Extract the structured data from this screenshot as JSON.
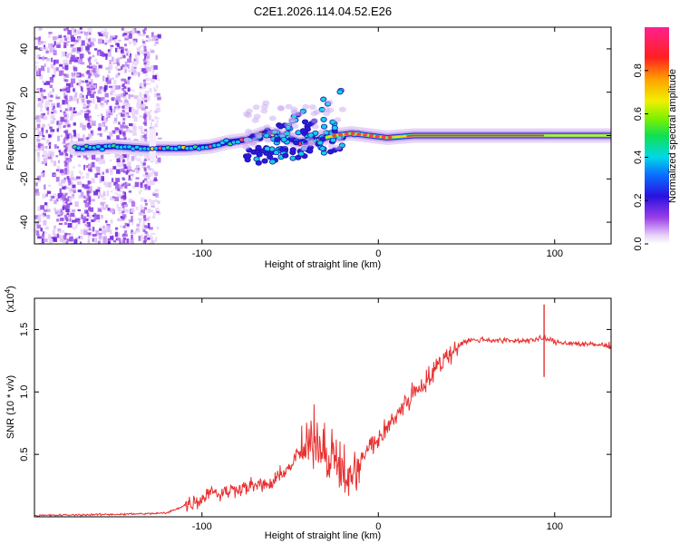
{
  "title": "C2E1.2026.114.04.52.E26",
  "chart_data": [
    {
      "type": "heatmap",
      "xlabel": "Height of straight line (km)",
      "ylabel": "Frequency (Hz)",
      "xlim": [
        -195,
        132
      ],
      "ylim": [
        -50,
        50
      ],
      "x_ticks": [
        -100,
        0,
        100
      ],
      "y_ticks": [
        -40,
        -20,
        0,
        20,
        40
      ],
      "colorbar": {
        "label": "Normalized spectral amplitude",
        "range": [
          0,
          1
        ],
        "ticks": [
          "0.0",
          "0.2",
          "0.4",
          "0.6",
          "0.8"
        ],
        "tick_values": [
          0,
          0.2,
          0.4,
          0.6,
          0.8
        ]
      },
      "signal_track": {
        "x": [
          -170,
          -150,
          -130,
          -110,
          -95,
          -85,
          -75,
          -65,
          -55,
          -45,
          -35,
          -25,
          -15,
          -5,
          5,
          20,
          50,
          80,
          110,
          132
        ],
        "frequency": [
          -6,
          -5,
          -6,
          -6,
          -5,
          -3,
          -2,
          1,
          0,
          -3,
          -2,
          0,
          1,
          0,
          -1,
          0,
          0,
          0,
          0,
          0
        ]
      },
      "noise_region_x": [
        -195,
        -125
      ]
    },
    {
      "type": "line",
      "xlabel": "Height of straight line (km)",
      "ylabel": "SNR (10 * v/v)",
      "y_multiplier": "(x10",
      "y_exponent": "4",
      "y_multiplier_close": ")",
      "xlim": [
        -195,
        132
      ],
      "ylim": [
        0,
        17500
      ],
      "x_ticks": [
        -100,
        0,
        100
      ],
      "y_ticks": [
        5000,
        10000,
        15000
      ],
      "y_tick_labels": [
        "0.5",
        "1.0",
        "1.5"
      ],
      "color": "#e83030",
      "series": [
        {
          "name": "SNR",
          "x": [
            -195,
            -170,
            -150,
            -130,
            -120,
            -110,
            -100,
            -95,
            -90,
            -80,
            -70,
            -60,
            -55,
            -50,
            -45,
            -40,
            -35,
            -30,
            -25,
            -20,
            -15,
            -10,
            -5,
            0,
            5,
            10,
            15,
            20,
            25,
            30,
            35,
            40,
            45,
            50,
            60,
            70,
            80,
            90,
            95,
            100,
            110,
            120,
            132
          ],
          "y": [
            100,
            150,
            200,
            250,
            300,
            900,
            1400,
            2200,
            1800,
            2300,
            2500,
            2600,
            3500,
            4000,
            5200,
            5500,
            6000,
            5200,
            4200,
            3600,
            3000,
            4500,
            5600,
            6200,
            7000,
            8200,
            9000,
            10000,
            10600,
            11300,
            12300,
            13000,
            13700,
            14100,
            14200,
            14100,
            14100,
            14200,
            14300,
            14000,
            13900,
            13800,
            13700
          ]
        }
      ],
      "spike": {
        "x": 94,
        "y_top": 17000,
        "y_bottom": 11200
      }
    }
  ]
}
